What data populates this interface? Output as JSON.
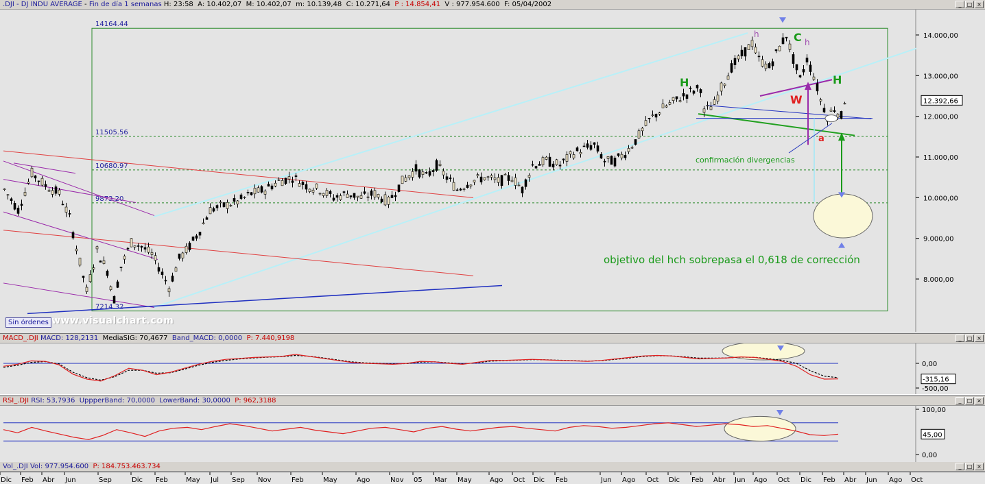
{
  "main": {
    "header": {
      "symbol": ".DJI - DJ INDU AVERAGE",
      "period": "Fin de día 1 semanas",
      "h": "H: 23:58",
      "a": "A: 10.402,07",
      "m_high": "M: 10.402,07",
      "m_low": "m: 10.139,48",
      "c": "C: 10.271,64",
      "p": "P : 14.854,41",
      "v": "V : 977.954.600",
      "f": "F: 05/04/2002"
    },
    "sin_ordenes": "Sin órdenes",
    "brand": "www.visualchart.com",
    "yticks": [
      "14.000,00",
      "13.000,00",
      "12.000,00",
      "11.000,00",
      "10.000,00",
      "9.000,00",
      "8.000,00"
    ],
    "last_value": "12.392,66",
    "fib_labels": [
      "14164.44",
      "11505.56",
      "10680.97",
      "9873.20",
      "7214.32"
    ],
    "annotations": {
      "C": "C",
      "H_left": "H",
      "H_right": "H",
      "h1": "h",
      "h2": "h",
      "W": "W",
      "a": "a",
      "divergencias": "confirmación divergencias",
      "objetivo": "objetivo del hch sobrepasa el 0,618 de corrección"
    }
  },
  "macd": {
    "header": {
      "name": "MACD_.DJI",
      "macd": "MACD: 128,2131",
      "signal": "MediaSIG: 70,4677",
      "band": "Band_MACD: 0,0000",
      "p": "P: 7.440,9198"
    },
    "yticks": [
      "0,00",
      "-500,00"
    ],
    "last_value": "-315,16"
  },
  "rsi": {
    "header": {
      "name": "RSI_.DJI",
      "rsi": "RSI: 53,7936",
      "upper": "UppperBand: 70,0000",
      "lower": "LowerBand: 30,0000",
      "p": "P: 962,3188"
    },
    "yticks": [
      "100,00",
      "0,00"
    ],
    "last_value": "45,00"
  },
  "vol": {
    "header": {
      "name": "Vol_.DJI",
      "vol": "Vol: 977.954.600",
      "p": "P: 184.753.463.734"
    }
  },
  "xaxis": {
    "labels": [
      "Dic",
      "Feb",
      "Abr",
      "Jun",
      "Sep",
      "Dic",
      "Feb",
      "May",
      "Jul",
      "Sep",
      "Nov",
      "Feb",
      "May",
      "Ago",
      "Nov",
      "05",
      "Mar",
      "May",
      "Ago",
      "Oct",
      "Dic",
      "Feb",
      "Jun",
      "Ago",
      "Oct",
      "Dic",
      "Feb",
      "Abr",
      "Jun",
      "Ago",
      "Oct",
      "Dic",
      "Feb",
      "Abr",
      "Jun",
      "Ago",
      "Oct"
    ]
  },
  "chart_data": [
    {
      "type": "candlestick",
      "title": ".DJI - DJ INDU AVERAGE",
      "ylim": [
        7000,
        14500
      ],
      "fib_levels": [
        14164.44,
        11505.56,
        10680.97,
        9873.2,
        7214.32
      ],
      "last": 12392.66,
      "path": [
        [
          0,
          10200
        ],
        [
          20,
          9700
        ],
        [
          40,
          10600
        ],
        [
          60,
          10300
        ],
        [
          80,
          10100
        ],
        [
          95,
          9500
        ],
        [
          110,
          8400
        ],
        [
          120,
          7700
        ],
        [
          135,
          8700
        ],
        [
          150,
          8200
        ],
        [
          160,
          7500
        ],
        [
          170,
          8300
        ],
        [
          185,
          8900
        ],
        [
          200,
          8800
        ],
        [
          215,
          8600
        ],
        [
          225,
          8300
        ],
        [
          240,
          7800
        ],
        [
          255,
          8500
        ],
        [
          270,
          8800
        ],
        [
          285,
          9200
        ],
        [
          300,
          9700
        ],
        [
          320,
          9800
        ],
        [
          340,
          9900
        ],
        [
          360,
          10100
        ],
        [
          380,
          10200
        ],
        [
          400,
          10400
        ],
        [
          420,
          10500
        ],
        [
          440,
          10300
        ],
        [
          460,
          10200
        ],
        [
          480,
          10000
        ],
        [
          500,
          10100
        ],
        [
          520,
          10000
        ],
        [
          540,
          10100
        ],
        [
          560,
          9900
        ],
        [
          580,
          10400
        ],
        [
          600,
          10700
        ],
        [
          615,
          10500
        ],
        [
          630,
          10800
        ],
        [
          645,
          10500
        ],
        [
          660,
          10200
        ],
        [
          680,
          10400
        ],
        [
          700,
          10500
        ],
        [
          720,
          10400
        ],
        [
          740,
          10500
        ],
        [
          755,
          10200
        ],
        [
          770,
          10800
        ],
        [
          790,
          10900
        ],
        [
          810,
          10800
        ],
        [
          830,
          11100
        ],
        [
          845,
          11200
        ],
        [
          860,
          11300
        ],
        [
          875,
          10900
        ],
        [
          890,
          10900
        ],
        [
          905,
          11100
        ],
        [
          920,
          11400
        ],
        [
          940,
          11900
        ],
        [
          960,
          12200
        ],
        [
          980,
          12400
        ],
        [
          1000,
          12600
        ],
        [
          1015,
          12700
        ],
        [
          1020,
          12100
        ],
        [
          1035,
          12300
        ],
        [
          1045,
          12700
        ],
        [
          1060,
          13200
        ],
        [
          1075,
          13500
        ],
        [
          1090,
          13800
        ],
        [
          1100,
          13400
        ],
        [
          1115,
          13200
        ],
        [
          1130,
          13700
        ],
        [
          1140,
          14000
        ],
        [
          1150,
          13400
        ],
        [
          1160,
          12900
        ],
        [
          1170,
          13400
        ],
        [
          1180,
          13000
        ],
        [
          1190,
          12400
        ],
        [
          1200,
          12000
        ],
        [
          1210,
          12200
        ],
        [
          1220,
          12000
        ],
        [
          1225,
          12400
        ]
      ]
    },
    {
      "type": "line",
      "title": "MACD_.DJI",
      "series": [
        {
          "name": "MACD",
          "values": [
            -60,
            -20,
            50,
            40,
            -30,
            -220,
            -320,
            -360,
            -250,
            -100,
            -140,
            -230,
            -180,
            -100,
            -20,
            40,
            80,
            100,
            120,
            130,
            140,
            180,
            140,
            100,
            60,
            20,
            0,
            -10,
            -20,
            0,
            40,
            30,
            0,
            -20,
            20,
            60,
            60,
            70,
            80,
            70,
            60,
            50,
            40,
            60,
            90,
            120,
            150,
            160,
            150,
            120,
            90,
            100,
            110,
            130,
            120,
            80,
            40,
            -60,
            -230,
            -320,
            -315
          ]
        },
        {
          "name": "MediaSIG",
          "values": [
            -80,
            -40,
            20,
            35,
            -10,
            -180,
            -290,
            -340,
            -270,
            -140,
            -140,
            -200,
            -190,
            -120,
            -40,
            20,
            60,
            90,
            110,
            125,
            135,
            160,
            145,
            110,
            70,
            30,
            10,
            0,
            -10,
            -5,
            25,
            30,
            10,
            -10,
            10,
            45,
            55,
            65,
            75,
            72,
            63,
            54,
            45,
            55,
            80,
            110,
            140,
            155,
            152,
            130,
            105,
            105,
            110,
            125,
            122,
            95,
            60,
            0,
            -150,
            -260,
            -290
          ]
        }
      ]
    },
    {
      "type": "line",
      "title": "RSI_.DJI",
      "ylim": [
        0,
        100
      ],
      "bands": [
        70,
        30
      ],
      "series": [
        {
          "name": "RSI",
          "values": [
            55,
            48,
            60,
            52,
            45,
            38,
            33,
            42,
            55,
            48,
            40,
            52,
            58,
            60,
            55,
            62,
            68,
            64,
            58,
            52,
            56,
            60,
            54,
            50,
            46,
            52,
            58,
            60,
            55,
            50,
            58,
            62,
            56,
            52,
            56,
            60,
            62,
            58,
            55,
            52,
            60,
            64,
            62,
            58,
            60,
            64,
            68,
            70,
            66,
            62,
            65,
            68,
            66,
            62,
            64,
            58,
            52,
            44,
            42,
            45
          ]
        }
      ]
    }
  ]
}
